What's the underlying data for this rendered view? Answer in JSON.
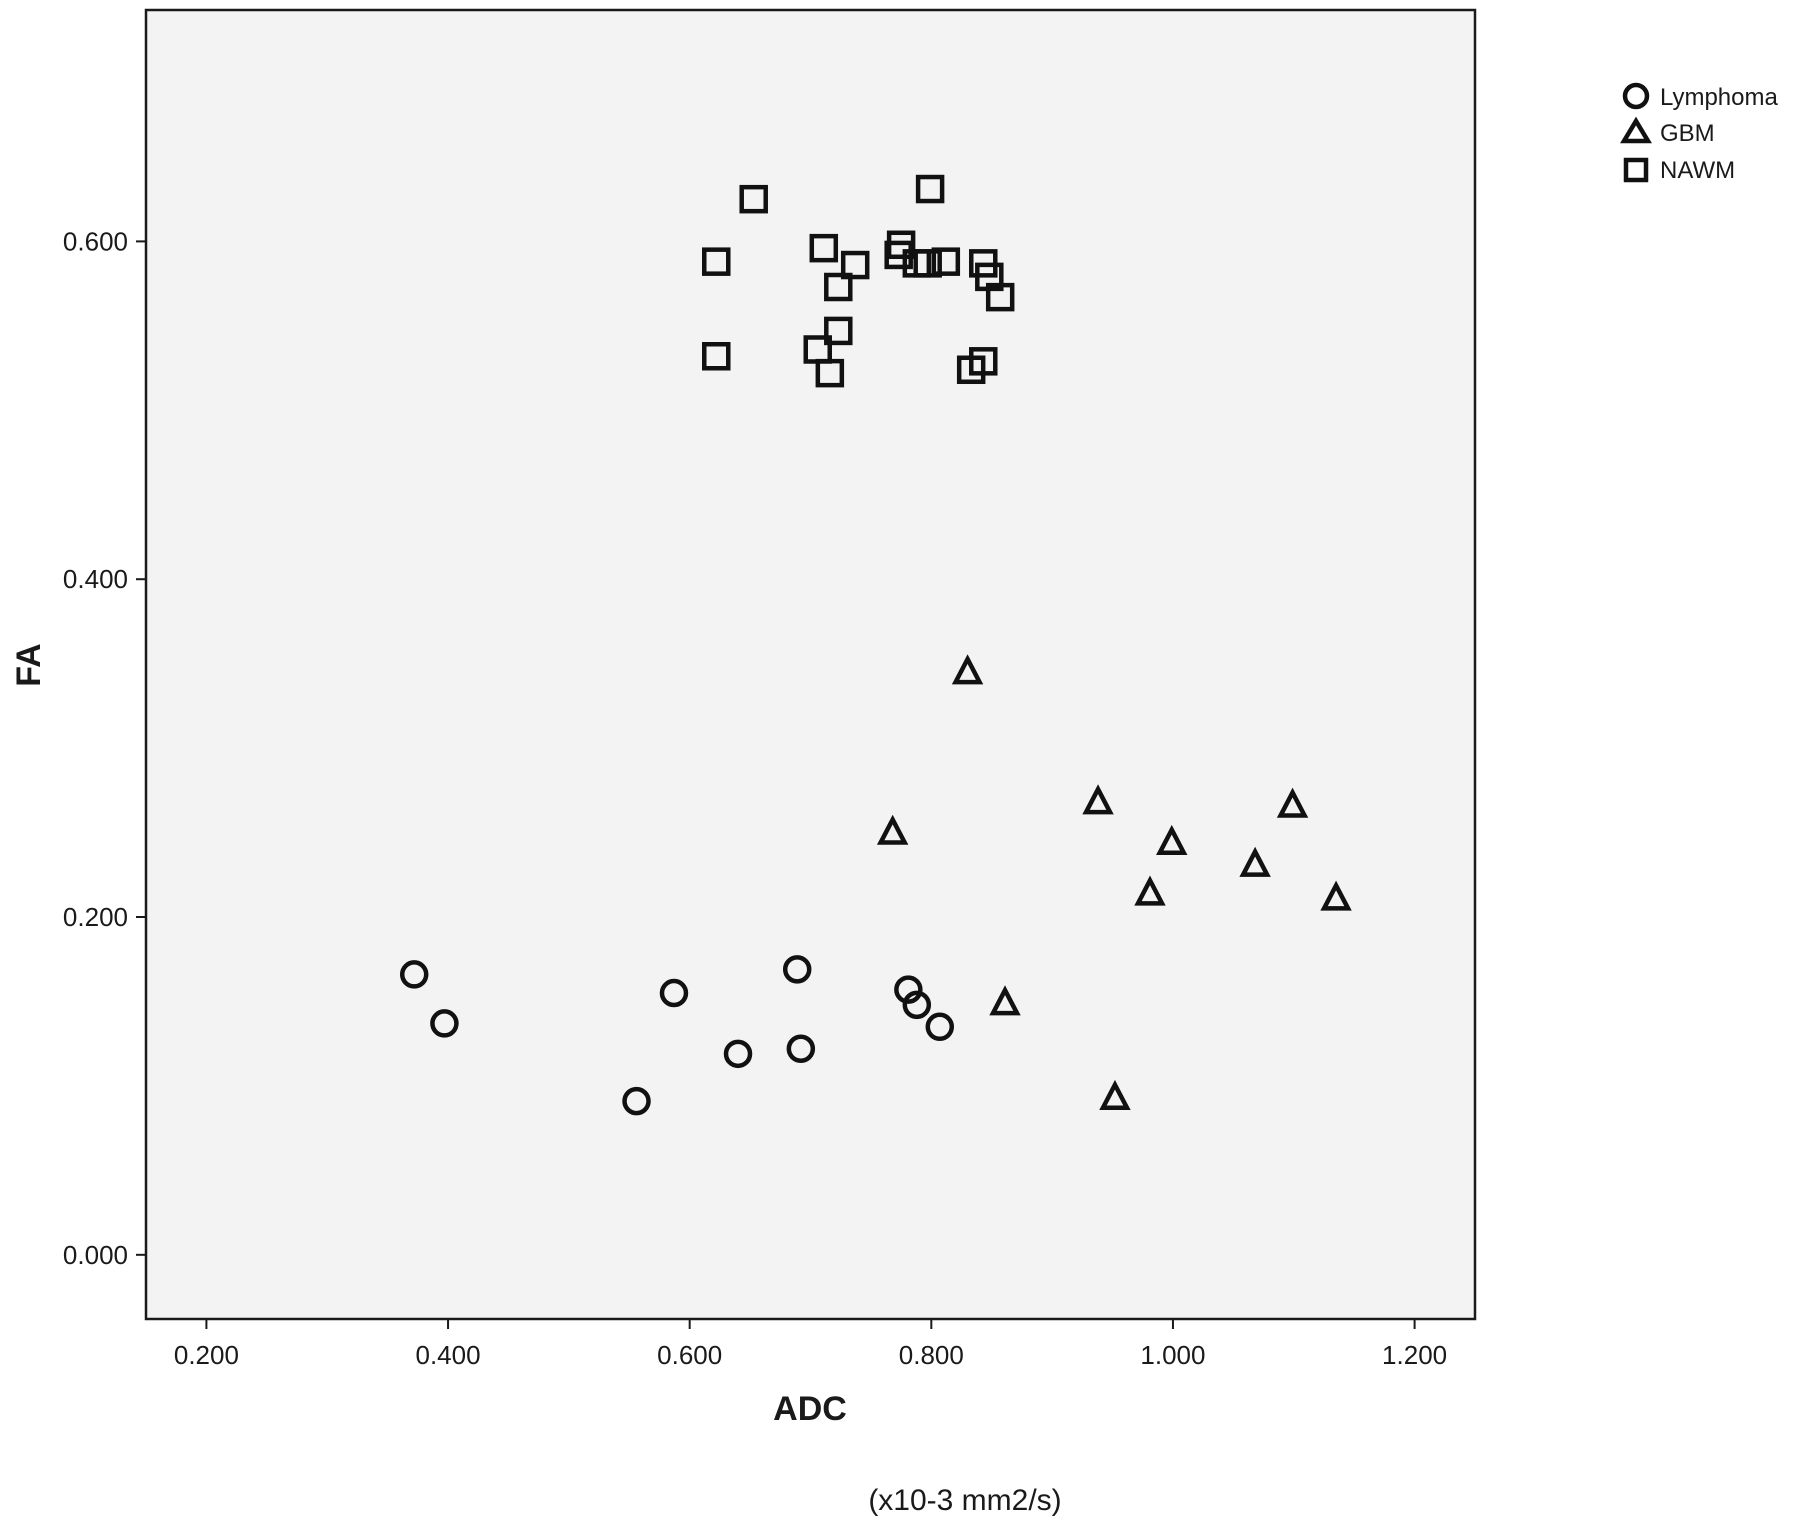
{
  "chart_data": {
    "type": "scatter",
    "title": "",
    "xlabel": "ADC",
    "x_unit": "(x10-3 mm2/s)",
    "ylabel": "FA",
    "xlim": [
      0.15,
      1.25
    ],
    "ylim": [
      -0.038,
      0.737
    ],
    "x_ticks": [
      "0.200",
      "0.400",
      "0.600",
      "0.800",
      "1.000",
      "1.200"
    ],
    "y_ticks": [
      "0.000",
      "0.200",
      "0.400",
      "0.600"
    ],
    "grid": false,
    "legend_position": "top-right, outside plot",
    "plot_background": "#f3f3f3",
    "marker_color": "#111111",
    "series": [
      {
        "name": "Lymphoma",
        "marker": "circle",
        "points": [
          [
            0.372,
            0.166
          ],
          [
            0.397,
            0.137
          ],
          [
            0.556,
            0.091
          ],
          [
            0.587,
            0.155
          ],
          [
            0.64,
            0.119
          ],
          [
            0.689,
            0.169
          ],
          [
            0.692,
            0.122
          ],
          [
            0.781,
            0.157
          ],
          [
            0.788,
            0.148
          ],
          [
            0.807,
            0.135
          ]
        ]
      },
      {
        "name": "GBM",
        "marker": "triangle",
        "points": [
          [
            0.83,
            0.345
          ],
          [
            0.768,
            0.25
          ],
          [
            0.938,
            0.268
          ],
          [
            0.999,
            0.244
          ],
          [
            1.099,
            0.266
          ],
          [
            1.068,
            0.231
          ],
          [
            0.981,
            0.214
          ],
          [
            1.135,
            0.211
          ],
          [
            0.861,
            0.149
          ],
          [
            0.952,
            0.093
          ]
        ]
      },
      {
        "name": "NAWM",
        "marker": "square",
        "points": [
          [
            0.653,
            0.625
          ],
          [
            0.799,
            0.631
          ],
          [
            0.622,
            0.588
          ],
          [
            0.711,
            0.596
          ],
          [
            0.737,
            0.586
          ],
          [
            0.775,
            0.598
          ],
          [
            0.773,
            0.592
          ],
          [
            0.788,
            0.587
          ],
          [
            0.797,
            0.587
          ],
          [
            0.812,
            0.588
          ],
          [
            0.843,
            0.587
          ],
          [
            0.848,
            0.579
          ],
          [
            0.857,
            0.567
          ],
          [
            0.723,
            0.573
          ],
          [
            0.723,
            0.547
          ],
          [
            0.622,
            0.532
          ],
          [
            0.706,
            0.536
          ],
          [
            0.716,
            0.522
          ],
          [
            0.833,
            0.524
          ],
          [
            0.843,
            0.529
          ]
        ]
      }
    ]
  }
}
